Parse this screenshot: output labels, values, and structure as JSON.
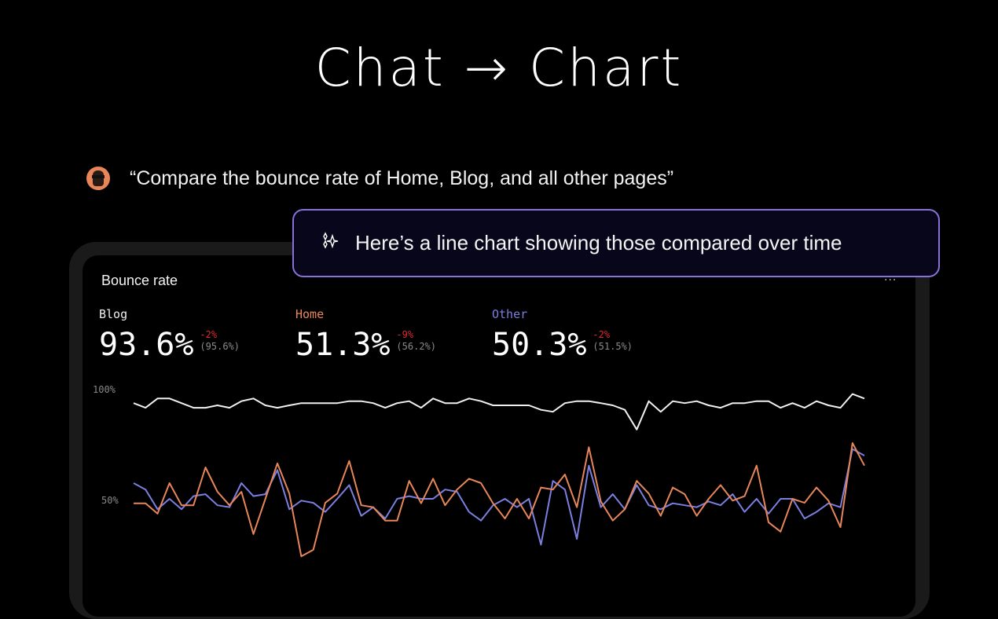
{
  "header": {
    "title": "Chat → Chart"
  },
  "prompt": {
    "avatar_icon": "user-avatar",
    "text": "“Compare the bounce rate of Home, Blog, and all other pages”"
  },
  "response": {
    "icon": "sparkle-icon",
    "text": "Here’s a line chart showing those compared over time",
    "border_color": "#8b70d8"
  },
  "card": {
    "title": "Bounce rate",
    "menu_label": "...",
    "stats": [
      {
        "name": "Blog",
        "value": "93.6%",
        "delta": "-2%",
        "previous": "(95.6%)",
        "color": "#f0f0f0"
      },
      {
        "name": "Home",
        "value": "51.3%",
        "delta": "-9%",
        "previous": "(56.2%)",
        "color": "#e8865a"
      },
      {
        "name": "Other",
        "value": "50.3%",
        "delta": "-2%",
        "previous": "(51.5%)",
        "color": "#7b7fe0"
      }
    ]
  },
  "chart_data": {
    "type": "line",
    "title": "",
    "xlabel": "",
    "ylabel": "",
    "ylim": [
      0,
      100
    ],
    "yticks": [
      "100%",
      "50%"
    ],
    "grid": false,
    "series": [
      {
        "name": "Blog",
        "color": "#f0f0f0",
        "values": [
          93.9,
          91.8,
          96.0,
          96.0,
          93.9,
          91.8,
          91.8,
          92.9,
          91.8,
          94.8,
          96.0,
          92.9,
          91.8,
          92.9,
          93.9,
          93.9,
          93.9,
          93.9,
          94.8,
          94.8,
          93.9,
          91.8,
          93.9,
          94.8,
          91.8,
          96.0,
          93.9,
          93.9,
          96.0,
          94.8,
          92.9,
          92.9,
          92.9,
          92.9,
          90.9,
          90.0,
          93.9,
          94.8,
          94.8,
          93.9,
          92.9,
          90.9,
          82.0,
          94.8,
          90.0,
          94.8,
          93.9,
          94.8,
          92.9,
          91.8,
          93.9,
          93.9,
          94.8,
          94.8,
          91.8,
          93.9,
          91.8,
          94.8,
          92.9,
          91.8,
          98.0,
          96.0
        ]
      },
      {
        "name": "Other",
        "color": "#7b7fe0",
        "values": [
          57.8,
          54.9,
          46.0,
          50.7,
          46.0,
          51.9,
          52.8,
          47.8,
          46.9,
          57.8,
          51.9,
          52.8,
          63.7,
          46.0,
          49.9,
          48.9,
          44.8,
          50.7,
          56.9,
          43.0,
          46.9,
          41.8,
          50.7,
          51.9,
          50.7,
          50.7,
          54.9,
          53.9,
          44.8,
          40.9,
          47.8,
          50.7,
          46.9,
          50.7,
          30.0,
          58.8,
          54.9,
          32.6,
          65.7,
          46.9,
          52.8,
          46.0,
          56.9,
          47.8,
          46.0,
          48.7,
          47.8,
          46.9,
          49.5,
          47.8,
          52.8,
          44.8,
          50.7,
          44.0,
          50.7,
          50.7,
          41.8,
          44.8,
          48.7,
          46.9,
          73.2,
          70.2
        ]
      },
      {
        "name": "Home",
        "color": "#e8865a",
        "values": [
          48.7,
          48.7,
          44.0,
          57.8,
          47.8,
          47.8,
          64.9,
          53.9,
          47.8,
          53.9,
          34.8,
          50.7,
          66.7,
          53.1,
          24.7,
          27.7,
          48.9,
          53.1,
          67.8,
          47.8,
          46.9,
          40.9,
          40.9,
          58.8,
          48.7,
          59.8,
          47.8,
          54.9,
          59.8,
          57.8,
          48.7,
          41.8,
          50.7,
          41.8,
          55.8,
          54.9,
          61.7,
          46.9,
          74.0,
          49.5,
          40.9,
          46.0,
          58.8,
          53.1,
          43.0,
          55.8,
          52.8,
          43.0,
          50.7,
          56.9,
          49.9,
          51.9,
          65.7,
          40.1,
          35.9,
          50.7,
          48.9,
          55.8,
          49.9,
          37.9,
          75.9,
          65.7
        ]
      }
    ]
  }
}
